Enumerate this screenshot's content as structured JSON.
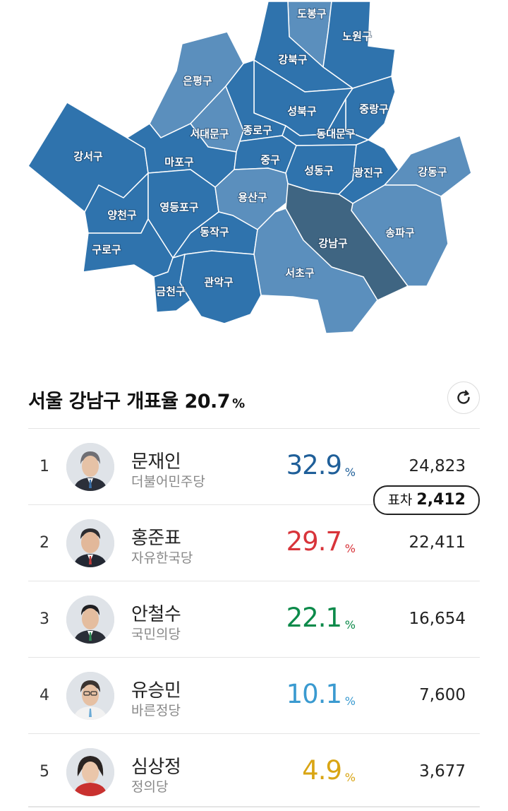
{
  "map": {
    "districts": [
      {
        "id": "dobong",
        "label": "도봉구",
        "color": "#5b8fbd"
      },
      {
        "id": "nowon",
        "label": "노원구",
        "color": "#2f73ad"
      },
      {
        "id": "gangbuk",
        "label": "강북구",
        "color": "#2f73ad"
      },
      {
        "id": "eunpyeong",
        "label": "은평구",
        "color": "#5b8fbd"
      },
      {
        "id": "seongbuk",
        "label": "성북구",
        "color": "#2f73ad"
      },
      {
        "id": "jungnang",
        "label": "중랑구",
        "color": "#2f73ad"
      },
      {
        "id": "seodaemun",
        "label": "서대문구",
        "color": "#5b8fbd"
      },
      {
        "id": "jongno",
        "label": "종로구",
        "color": "#2f73ad"
      },
      {
        "id": "dongdaemun",
        "label": "동대문구",
        "color": "#2f73ad"
      },
      {
        "id": "gangseo",
        "label": "강서구",
        "color": "#2f73ad"
      },
      {
        "id": "mapo",
        "label": "마포구",
        "color": "#2f73ad"
      },
      {
        "id": "junggu",
        "label": "중구",
        "color": "#2f73ad"
      },
      {
        "id": "seongdong",
        "label": "성동구",
        "color": "#2f73ad"
      },
      {
        "id": "gwangjin",
        "label": "광진구",
        "color": "#2f73ad"
      },
      {
        "id": "gangdong",
        "label": "강동구",
        "color": "#5b8fbd"
      },
      {
        "id": "yangcheon",
        "label": "양천구",
        "color": "#2f73ad"
      },
      {
        "id": "yeongdeungpo",
        "label": "영등포구",
        "color": "#2f73ad"
      },
      {
        "id": "yongsan",
        "label": "용산구",
        "color": "#5b8fbd"
      },
      {
        "id": "songpa",
        "label": "송파구",
        "color": "#5b8fbd"
      },
      {
        "id": "gangnam",
        "label": "강남구",
        "color": "#3f6582"
      },
      {
        "id": "guro",
        "label": "구로구",
        "color": "#2f73ad"
      },
      {
        "id": "dongjak",
        "label": "동작구",
        "color": "#2f73ad"
      },
      {
        "id": "seocho",
        "label": "서초구",
        "color": "#5b8fbd"
      },
      {
        "id": "geumcheon",
        "label": "금천구",
        "color": "#2f73ad"
      },
      {
        "id": "gwanak",
        "label": "관악구",
        "color": "#2f73ad"
      }
    ]
  },
  "header": {
    "title": "서울 강남구 개표율",
    "rate": "20.7",
    "rate_unit": "%",
    "refresh_icon": "refresh-icon"
  },
  "candidates": [
    {
      "rank": "1",
      "name": "문재인",
      "party": "더불어민주당",
      "rate": "32.9",
      "unit": "%",
      "votes": "24,823",
      "color": "#1f5f99"
    },
    {
      "rank": "2",
      "name": "홍준표",
      "party": "자유한국당",
      "rate": "29.7",
      "unit": "%",
      "votes": "22,411",
      "color": "#d8343a"
    },
    {
      "rank": "3",
      "name": "안철수",
      "party": "국민의당",
      "rate": "22.1",
      "unit": "%",
      "votes": "16,654",
      "color": "#0c8a4a"
    },
    {
      "rank": "4",
      "name": "유승민",
      "party": "바른정당",
      "rate": "10.1",
      "unit": "%",
      "votes": "7,600",
      "color": "#3a9ad0"
    },
    {
      "rank": "5",
      "name": "심상정",
      "party": "정의당",
      "rate": "4.9",
      "unit": "%",
      "votes": "3,677",
      "color": "#d9a514"
    }
  ],
  "gap": {
    "label": "표차",
    "value": "2,412"
  }
}
